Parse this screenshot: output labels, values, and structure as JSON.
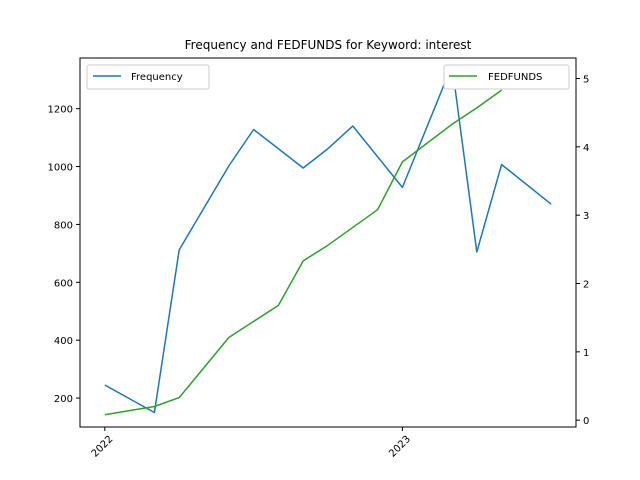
{
  "chart_data": {
    "type": "line",
    "title": "Frequency and FEDFUNDS for Keyword: interest",
    "x_tick_labels": [
      "2022",
      "2023"
    ],
    "x_ticks": [
      "2022-01",
      "2023-01"
    ],
    "x_range": [
      "2021-12",
      "2023-08"
    ],
    "y_left": {
      "ticks": [
        200,
        400,
        600,
        800,
        1000,
        1200
      ],
      "range": [
        100,
        1375
      ]
    },
    "y_right": {
      "ticks": [
        0,
        1,
        2,
        3,
        4,
        5
      ],
      "range": [
        -0.1,
        5.3
      ]
    },
    "grid": false,
    "series": [
      {
        "name": "Frequency",
        "axis": "left",
        "color": "#1f77b4",
        "legend_position": "upper-left",
        "x": [
          "2022-01",
          "2022-03",
          "2022-04",
          "2022-06",
          "2022-07",
          "2022-09",
          "2022-10",
          "2022-11",
          "2023-01",
          "2023-03",
          "2023-04",
          "2023-05",
          "2023-07"
        ],
        "y": [
          245,
          150,
          712,
          1002,
          1128,
          995,
          1062,
          1140,
          928,
          1350,
          705,
          1007,
          870
        ]
      },
      {
        "name": "FEDFUNDS",
        "axis": "right",
        "color": "#2ca02c",
        "legend_position": "upper-right",
        "x": [
          "2022-01",
          "2022-03",
          "2022-04",
          "2022-05",
          "2022-06",
          "2022-08",
          "2022-09",
          "2022-10",
          "2022-12",
          "2023-01",
          "2023-03",
          "2023-04",
          "2023-05"
        ],
        "y": [
          0.08,
          0.2,
          0.33,
          0.77,
          1.21,
          1.68,
          2.33,
          2.56,
          3.08,
          3.78,
          4.33,
          4.57,
          4.83
        ]
      }
    ]
  }
}
